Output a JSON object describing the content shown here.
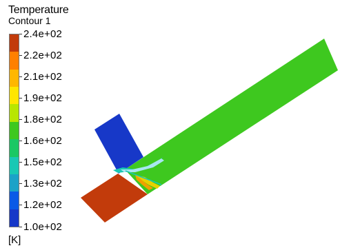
{
  "legend": {
    "title": "Temperature",
    "subtitle": "Contour 1",
    "unit": "[K]",
    "levels": [
      "2.4e+02",
      "2.2e+02",
      "2.1e+02",
      "1.9e+02",
      "1.8e+02",
      "1.6e+02",
      "1.5e+02",
      "1.3e+02",
      "1.2e+02",
      "1.0e+02"
    ],
    "band_colors": [
      "#c23b0b",
      "#ff8000",
      "#ffb700",
      "#ffe600",
      "#b8e600",
      "#3ec81f",
      "#1ac864",
      "#19c8b4",
      "#1ba2c8",
      "#0a5ae6",
      "#1738c8"
    ]
  },
  "field_colors": {
    "hot_inlet": "#c23b0b",
    "cold_inlet": "#1738c8",
    "mixed_pipe": "#3ec81f",
    "mixing_cyan": "#19c8b4",
    "mixing_light": "#a8e6f0",
    "mixing_yellow": "#e6d200",
    "mixing_orange": "#f0a000"
  }
}
